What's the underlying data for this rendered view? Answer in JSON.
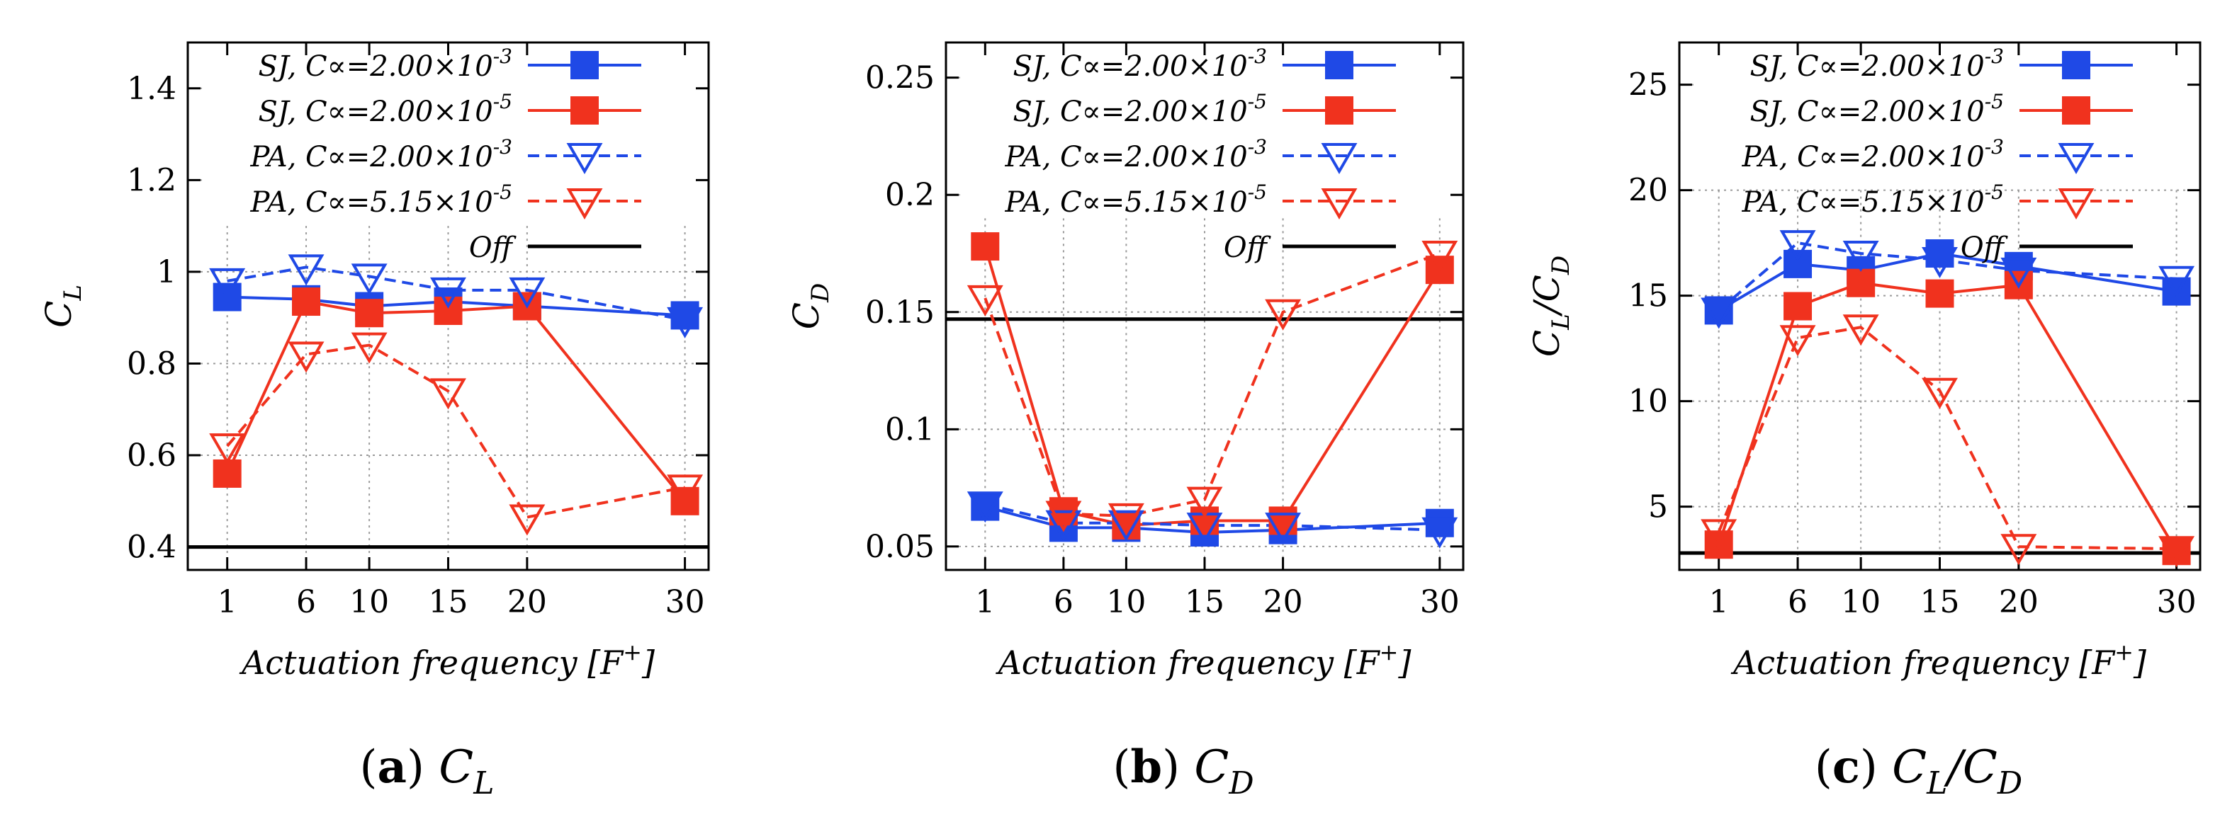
{
  "chart_data": [
    {
      "type": "line",
      "panel_label": "(a)",
      "caption_var": "C",
      "caption_sub": "L",
      "caption_tail": "",
      "ylabel": "C",
      "ylabel_sub": "L",
      "ylabel_tail": "",
      "xlabel_text": "Actuation frequency [F",
      "xlabel_sup": "+",
      "xlabel_close": "]",
      "xlim": [
        -1.5,
        31.5
      ],
      "ylim": [
        0.35,
        1.5
      ],
      "yticks": [
        0.4,
        0.6,
        0.8,
        1,
        1.2,
        1.4
      ],
      "ytick_labels": [
        "0.4",
        "0.6",
        "0.8",
        "1",
        "1.2",
        "1.4"
      ],
      "x": [
        1,
        6,
        10,
        15,
        20,
        30
      ],
      "xtick_labels": [
        "1",
        "6",
        "10",
        "15",
        "20",
        "30"
      ],
      "grid_region_top": 1.1,
      "series": [
        {
          "name": "SJ, C∝=2.00×10",
          "exp": "-3",
          "color": "#1f49e6",
          "dash": false,
          "marker": "square",
          "values": [
            0.945,
            0.94,
            0.925,
            0.935,
            0.925,
            0.905
          ]
        },
        {
          "name": "SJ, C∝=2.00×10",
          "exp": "-5",
          "color": "#f0321e",
          "dash": false,
          "marker": "square",
          "values": [
            0.56,
            0.935,
            0.91,
            0.915,
            0.925,
            0.5
          ]
        },
        {
          "name": "PA, C∝=2.00×10",
          "exp": "-3",
          "color": "#1f49e6",
          "dash": true,
          "marker": "triangle-down",
          "values": [
            0.98,
            1.01,
            0.99,
            0.96,
            0.96,
            0.895
          ]
        },
        {
          "name": "PA, C∝=5.15×10",
          "exp": "-5",
          "color": "#f0321e",
          "dash": true,
          "marker": "triangle-down",
          "values": [
            0.62,
            0.82,
            0.84,
            0.74,
            0.465,
            0.53
          ]
        }
      ],
      "off_label": "Off",
      "off_value": 0.4
    },
    {
      "type": "line",
      "panel_label": "(b)",
      "caption_var": "C",
      "caption_sub": "D",
      "caption_tail": "",
      "ylabel": "C",
      "ylabel_sub": "D",
      "ylabel_tail": "",
      "xlabel_text": "Actuation frequency [F",
      "xlabel_sup": "+",
      "xlabel_close": "]",
      "xlim": [
        -1.5,
        31.5
      ],
      "ylim": [
        0.04,
        0.265
      ],
      "yticks": [
        0.05,
        0.1,
        0.15,
        0.2,
        0.25
      ],
      "ytick_labels": [
        "0.05",
        "0.1",
        "0.15",
        "0.2",
        "0.25"
      ],
      "x": [
        1,
        6,
        10,
        15,
        20,
        30
      ],
      "xtick_labels": [
        "1",
        "6",
        "10",
        "15",
        "20",
        "30"
      ],
      "grid_region_top": 0.19,
      "series": [
        {
          "name": "SJ, C∝=2.00×10",
          "exp": "-3",
          "color": "#1f49e6",
          "dash": false,
          "marker": "square",
          "values": [
            0.067,
            0.058,
            0.058,
            0.056,
            0.057,
            0.06
          ]
        },
        {
          "name": "SJ, C∝=2.00×10",
          "exp": "-5",
          "color": "#f0321e",
          "dash": false,
          "marker": "square",
          "values": [
            0.178,
            0.065,
            0.059,
            0.061,
            0.061,
            0.168
          ]
        },
        {
          "name": "PA, C∝=2.00×10",
          "exp": "-3",
          "color": "#1f49e6",
          "dash": true,
          "marker": "triangle-down",
          "values": [
            0.068,
            0.06,
            0.06,
            0.059,
            0.059,
            0.057
          ]
        },
        {
          "name": "PA, C∝=5.15×10",
          "exp": "-5",
          "color": "#f0321e",
          "dash": true,
          "marker": "triangle-down",
          "values": [
            0.156,
            0.064,
            0.063,
            0.07,
            0.15,
            0.175
          ]
        }
      ],
      "off_label": "Off",
      "off_value": 0.147
    },
    {
      "type": "line",
      "panel_label": "(c)",
      "caption_var": "C",
      "caption_sub": "L",
      "caption_tail": "/C",
      "caption_tail_sub": "D",
      "ylabel": "C",
      "ylabel_sub": "L",
      "ylabel_tail": "/C",
      "ylabel_tail_sub": "D",
      "xlabel_text": "Actuation frequency [F",
      "xlabel_sup": "+",
      "xlabel_close": "]",
      "xlim": [
        -1.5,
        31.5
      ],
      "ylim": [
        2,
        27
      ],
      "yticks": [
        5,
        10,
        15,
        20,
        25
      ],
      "ytick_labels": [
        "5",
        "10",
        "15",
        "20",
        "25"
      ],
      "x": [
        1,
        6,
        10,
        15,
        20,
        30
      ],
      "xtick_labels": [
        "1",
        "6",
        "10",
        "15",
        "20",
        "30"
      ],
      "grid_region_top": 20,
      "series": [
        {
          "name": "SJ, C∝=2.00×10",
          "exp": "-3",
          "color": "#1f49e6",
          "dash": false,
          "marker": "square",
          "values": [
            14.3,
            16.5,
            16.2,
            17.0,
            16.4,
            15.2
          ]
        },
        {
          "name": "SJ, C∝=2.00×10",
          "exp": "-5",
          "color": "#f0321e",
          "dash": false,
          "marker": "square",
          "values": [
            3.2,
            14.5,
            15.6,
            15.1,
            15.5,
            2.9
          ]
        },
        {
          "name": "PA, C∝=2.00×10",
          "exp": "-3",
          "color": "#1f49e6",
          "dash": true,
          "marker": "triangle-down",
          "values": [
            14.3,
            17.5,
            17.0,
            16.7,
            16.2,
            15.8
          ]
        },
        {
          "name": "PA, C∝=5.15×10",
          "exp": "-5",
          "color": "#f0321e",
          "dash": true,
          "marker": "triangle-down",
          "values": [
            3.8,
            13.0,
            13.5,
            10.5,
            3.1,
            3.0
          ]
        }
      ],
      "off_label": "Off",
      "off_value": 2.8
    }
  ]
}
